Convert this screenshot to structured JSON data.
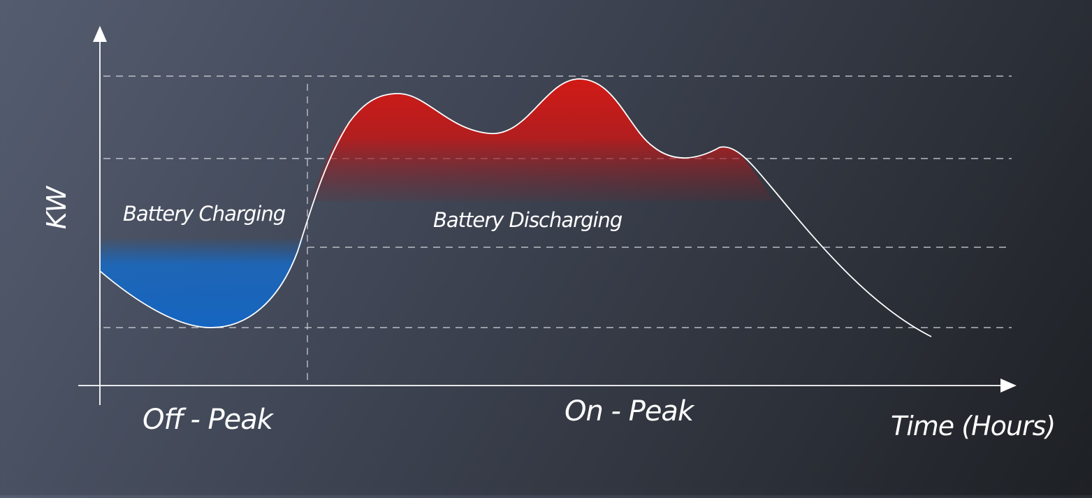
{
  "axes": {
    "y_label": "KW",
    "x_label": "Time (Hours)"
  },
  "regions": {
    "charging_label": "Battery Charging",
    "discharging_label": "Battery Discharging"
  },
  "periods": {
    "off_peak": "Off - Peak",
    "on_peak": "On - Peak"
  },
  "colors": {
    "charging": "#1565c0",
    "discharging": "#c81a1a",
    "curve": "#ffffff",
    "gridline": "#d0d4da"
  }
}
